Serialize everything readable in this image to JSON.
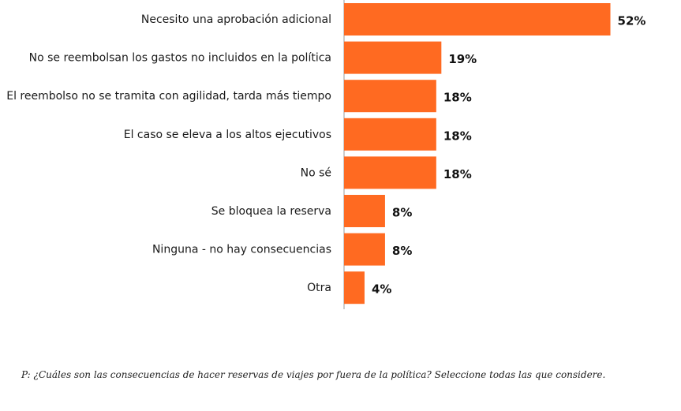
{
  "chart_data": {
    "type": "bar",
    "orientation": "horizontal",
    "categories": [
      "Necesito una aprobación adicional",
      "No se reembolsan los gastos no incluidos en la política",
      "El reembolso no se tramita con agilidad, tarda más tiempo",
      "El caso se eleva a los altos ejecutivos",
      "No sé",
      "Se bloquea la reserva",
      "Ninguna - no hay consecuencias",
      "Otra"
    ],
    "values": [
      52,
      19,
      18,
      18,
      18,
      8,
      8,
      4
    ],
    "value_labels": [
      "52%",
      "19%",
      "18%",
      "18%",
      "18%",
      "8%",
      "8%",
      "4%"
    ],
    "xlim": [
      0,
      55
    ],
    "title": "",
    "xlabel": "",
    "ylabel": "",
    "bar_color": "#ff6a21",
    "grid": false,
    "legend": "none"
  },
  "footnote": "P: ¿Cuáles son las consecuencias de hacer reservas de viajes por fuera de la política? Seleccione todas las que considere."
}
